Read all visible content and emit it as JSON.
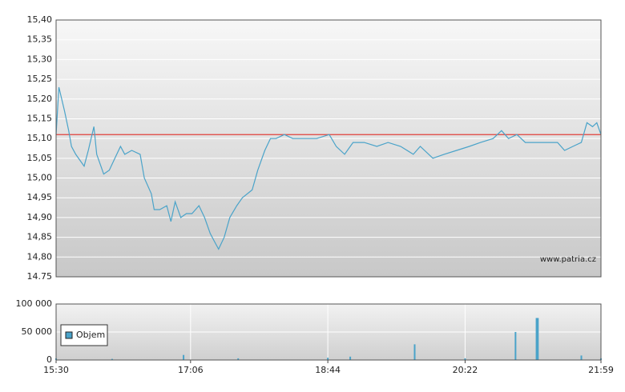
{
  "chart_data": [
    {
      "type": "line",
      "xlim": [
        "15:30",
        "21:59"
      ],
      "ylim": [
        14.75,
        15.4
      ],
      "yticks": [
        {
          "value": 14.75,
          "label": "14.75"
        },
        {
          "value": 14.8,
          "label": "14,80"
        },
        {
          "value": 14.85,
          "label": "14,85"
        },
        {
          "value": 14.9,
          "label": "14,90"
        },
        {
          "value": 14.95,
          "label": "14,95"
        },
        {
          "value": 15.0,
          "label": "15,00"
        },
        {
          "value": 15.05,
          "label": "15,05"
        },
        {
          "value": 15.1,
          "label": "15,10"
        },
        {
          "value": 15.15,
          "label": "15,15"
        },
        {
          "value": 15.2,
          "label": "15,20"
        },
        {
          "value": 15.25,
          "label": "15,25"
        },
        {
          "value": 15.3,
          "label": "15,30"
        },
        {
          "value": 15.35,
          "label": "15,35"
        },
        {
          "value": 15.4,
          "label": "15,40"
        }
      ],
      "x": [
        "15:30",
        "15:32",
        "15:36",
        "15:39",
        "15:41",
        "15:44",
        "15:50",
        "15:53",
        "15:57",
        "15:59",
        "16:01",
        "16:04",
        "16:08",
        "16:12",
        "16:16",
        "16:19",
        "16:24",
        "16:30",
        "16:33",
        "16:38",
        "16:40",
        "16:44",
        "16:49",
        "16:52",
        "16:55",
        "16:59",
        "17:03",
        "17:07",
        "17:12",
        "17:16",
        "17:20",
        "17:23",
        "17:26",
        "17:30",
        "17:34",
        "17:39",
        "17:43",
        "17:50",
        "17:54",
        "17:59",
        "18:03",
        "18:07",
        "18:13",
        "18:19",
        "18:27",
        "18:36",
        "18:45",
        "18:50",
        "18:56",
        "19:02",
        "19:10",
        "19:19",
        "19:27",
        "19:36",
        "19:45",
        "19:50",
        "19:59",
        "20:07",
        "20:16",
        "20:25",
        "20:33",
        "20:42",
        "20:48",
        "20:53",
        "20:59",
        "21:05",
        "21:13",
        "21:22",
        "21:28",
        "21:33",
        "21:39",
        "21:45",
        "21:49",
        "21:53",
        "21:56",
        "21:59"
      ],
      "series": [
        {
          "color": "#4aa3c9",
          "values": [
            15.11,
            15.23,
            15.17,
            15.12,
            15.08,
            15.06,
            15.03,
            15.07,
            15.13,
            15.06,
            15.04,
            15.01,
            15.02,
            15.05,
            15.08,
            15.06,
            15.07,
            15.06,
            15.0,
            14.96,
            14.92,
            14.92,
            14.93,
            14.89,
            14.94,
            14.9,
            14.91,
            14.91,
            14.93,
            14.9,
            14.86,
            14.84,
            14.82,
            14.85,
            14.9,
            14.93,
            14.95,
            14.97,
            15.02,
            15.07,
            15.1,
            15.1,
            15.11,
            15.1,
            15.1,
            15.1,
            15.11,
            15.08,
            15.06,
            15.09,
            15.09,
            15.08,
            15.09,
            15.08,
            15.06,
            15.08,
            15.05,
            15.06,
            15.07,
            15.08,
            15.09,
            15.1,
            15.12,
            15.1,
            15.11,
            15.09,
            15.09,
            15.09,
            15.09,
            15.07,
            15.08,
            15.09,
            15.14,
            15.13,
            15.14,
            15.11
          ]
        }
      ],
      "reference_line": {
        "value": 15.11,
        "color": "#e0403a"
      },
      "watermark": "www.patria.cz"
    },
    {
      "type": "bar",
      "xlim": [
        "15:30",
        "21:59"
      ],
      "xticks": [
        "15:30",
        "17:06",
        "18:44",
        "20:22",
        "21:59"
      ],
      "ylim": [
        0,
        100000
      ],
      "yticks": [
        {
          "value": 0,
          "label": "0"
        },
        {
          "value": 50000,
          "label": "50 000"
        },
        {
          "value": 100000,
          "label": "100 000"
        }
      ],
      "legend": "Objem",
      "color": "#4aa3c9",
      "x": [
        "15:30",
        "16:10",
        "17:01",
        "17:40",
        "18:44",
        "19:00",
        "19:46",
        "20:22",
        "20:58",
        "21:13",
        "21:14",
        "21:45",
        "21:59"
      ],
      "values": [
        3000,
        2000,
        9000,
        3000,
        4000,
        6000,
        28000,
        3000,
        50000,
        75000,
        75000,
        8000,
        3000
      ]
    }
  ]
}
